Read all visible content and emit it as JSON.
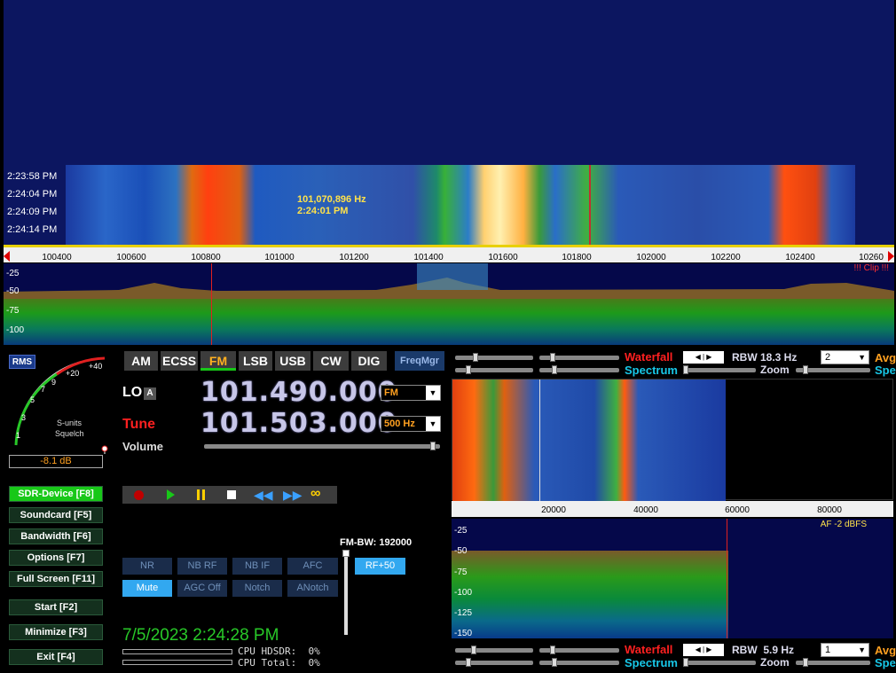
{
  "waterfall_top": {
    "timestamps": [
      "2:23:58 PM",
      "2:24:04 PM",
      "2:24:09 PM",
      "2:24:14 PM"
    ],
    "cursor_freq": "101,070,896 Hz",
    "cursor_time": "2:24:01 PM"
  },
  "freq_scale": [
    "100400",
    "100600",
    "100800",
    "101000",
    "101200",
    "101400",
    "101600",
    "101800",
    "102000",
    "102200",
    "102400",
    "10260"
  ],
  "spectrum_top": {
    "db_labels": [
      "-25",
      "-50",
      "-75",
      "-100"
    ],
    "clip": "!!! Clip !!!"
  },
  "smeter": {
    "rms": "RMS",
    "scale": [
      "1",
      "3",
      "5",
      "7",
      "9",
      "+20",
      "+40"
    ],
    "caption1": "S-units",
    "caption2": "Squelch",
    "level": "-8.1 dB"
  },
  "left_buttons": [
    {
      "label": "SDR-Device [F8]",
      "on": true
    },
    {
      "label": "Soundcard  [F5]"
    },
    {
      "label": "Bandwidth  [F6]"
    },
    {
      "label": "Options   [F7]"
    },
    {
      "label": "Full Screen  [F11]"
    },
    {
      "label": "Start       [F2]"
    },
    {
      "label": "Minimize  [F3]"
    },
    {
      "label": "Exit        [F4]"
    }
  ],
  "modes": [
    "AM",
    "ECSS",
    "FM",
    "LSB",
    "USB",
    "CW",
    "DIG"
  ],
  "selected_mode": "FM",
  "freqmgr": "FreqMgr",
  "lo": {
    "label": "LO",
    "badge": "A",
    "value": "101.490.000",
    "select": "FM"
  },
  "tune": {
    "label": "Tune",
    "value": "101.503.000",
    "select": "500 Hz"
  },
  "volume": {
    "label": "Volume",
    "level": 0.98
  },
  "transport_icons": [
    "record-icon",
    "play-icon",
    "pause-icon",
    "stop-icon",
    "rewind-icon",
    "forward-icon",
    "loop-icon"
  ],
  "fm_bw": "FM-BW: 192000",
  "dsp_row1": [
    "NR",
    "NB RF",
    "NB IF",
    "AFC"
  ],
  "dsp_row2": [
    "Mute",
    "AGC Off",
    "Notch",
    "ANotch"
  ],
  "rf_btn": "RF+50",
  "datetime": "7/5/2023 2:24:28 PM",
  "cpu": {
    "hdsdr": "CPU HDSDR:  0%",
    "total": "CPU Total:  0%"
  },
  "right_top": {
    "waterfall": "Waterfall",
    "spectrum": "Spectrum",
    "rbw": "RBW 18.3 Hz",
    "avg": "2",
    "zoom": "Zoom",
    "avg_cut": "Avg",
    "spe_cut": "Spe"
  },
  "right_bottom": {
    "waterfall": "Waterfall",
    "spectrum": "Spectrum",
    "rbw": "RBW  5.9 Hz",
    "avg": "1",
    "zoom": "Zoom",
    "avg_cut": "Avg",
    "spe_cut": "Spe"
  },
  "af_scale": [
    "20000",
    "40000",
    "60000",
    "80000"
  ],
  "af_db": [
    "-25",
    "-50",
    "-75",
    "-100",
    "-125",
    "-150"
  ],
  "af_level": "AF  -2 dBFS",
  "colors": {
    "accent": "#ffa020",
    "tune_red": "#ff2020",
    "wf_bg": "#0c1660"
  }
}
